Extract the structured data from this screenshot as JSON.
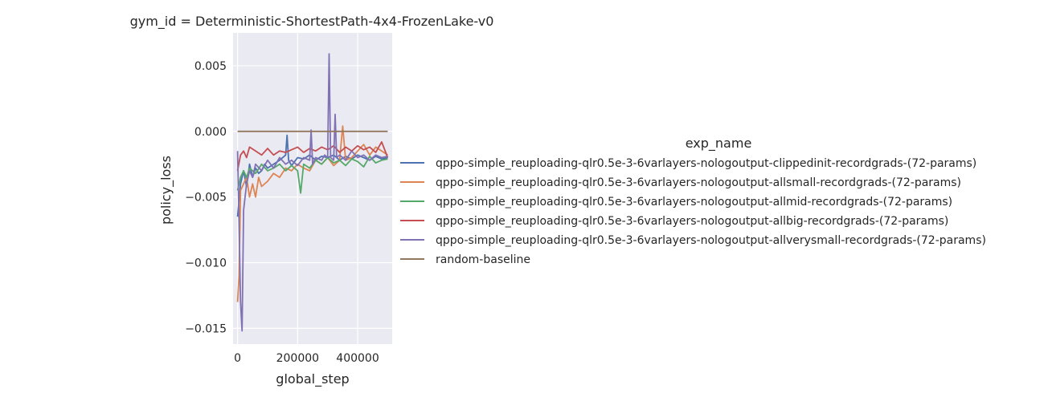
{
  "chart_data": {
    "type": "line",
    "title": "gym_id = Deterministic-ShortestPath-4x4-FrozenLake-v0",
    "xlabel": "global_step",
    "ylabel": "policy_loss",
    "xlim": [
      -15000,
      515000
    ],
    "ylim": [
      -0.0162,
      0.0075
    ],
    "xticks": [
      0,
      200000,
      400000
    ],
    "xtick_labels": [
      "0",
      "200000",
      "400000"
    ],
    "yticks": [
      -0.015,
      -0.01,
      -0.005,
      0.0,
      0.005
    ],
    "ytick_labels": [
      "−0.015",
      "−0.010",
      "−0.005",
      "0.000",
      "0.005"
    ],
    "grid": true,
    "legend_title": "exp_name",
    "legend_position": "right",
    "series": [
      {
        "name": "qppo-simple_reuploading-qlr0.5e-3-6varlayers-nologoutput-clippedinit-recordgrads-(72-params)",
        "color": "#4c72b0",
        "x": [
          0,
          10000,
          20000,
          30000,
          40000,
          50000,
          60000,
          70000,
          80000,
          90000,
          100000,
          120000,
          140000,
          160000,
          165000,
          170000,
          180000,
          200000,
          220000,
          240000,
          260000,
          280000,
          300000,
          320000,
          340000,
          360000,
          380000,
          400000,
          420000,
          440000,
          460000,
          480000,
          500000
        ],
        "y": [
          -0.0065,
          -0.004,
          -0.003,
          -0.0042,
          -0.0025,
          -0.0035,
          -0.0028,
          -0.0032,
          -0.003,
          -0.0025,
          -0.0028,
          -0.0025,
          -0.0022,
          -0.0018,
          -0.0003,
          -0.0022,
          -0.0026,
          -0.002,
          -0.0021,
          -0.0018,
          -0.0022,
          -0.0019,
          -0.002,
          -0.0018,
          -0.0022,
          -0.0019,
          -0.0021,
          -0.0018,
          -0.002,
          -0.0022,
          -0.0019,
          -0.0021,
          -0.002
        ]
      },
      {
        "name": "qppo-simple_reuploading-qlr0.5e-3-6varlayers-nologoutput-allsmall-recordgrads-(72-params)",
        "color": "#dd8452",
        "x": [
          0,
          5000,
          10000,
          20000,
          30000,
          40000,
          50000,
          60000,
          70000,
          80000,
          100000,
          120000,
          140000,
          160000,
          180000,
          200000,
          220000,
          240000,
          260000,
          280000,
          300000,
          320000,
          340000,
          350000,
          360000,
          380000,
          400000,
          420000,
          440000,
          460000,
          480000,
          500000
        ],
        "y": [
          -0.013,
          -0.011,
          -0.0045,
          -0.004,
          -0.0035,
          -0.005,
          -0.004,
          -0.005,
          -0.0035,
          -0.0042,
          -0.0038,
          -0.0032,
          -0.0035,
          -0.0028,
          -0.003,
          -0.0025,
          -0.0028,
          -0.003,
          -0.0022,
          -0.0025,
          -0.002,
          -0.0026,
          -0.0022,
          0.0004,
          -0.0022,
          -0.002,
          -0.0015,
          -0.001,
          -0.0018,
          -0.0012,
          -0.0015,
          -0.0018
        ]
      },
      {
        "name": "qppo-simple_reuploading-qlr0.5e-3-6varlayers-nologoutput-allmid-recordgrads-(72-params)",
        "color": "#55a868",
        "x": [
          0,
          10000,
          20000,
          30000,
          40000,
          60000,
          80000,
          100000,
          120000,
          140000,
          160000,
          180000,
          200000,
          210000,
          220000,
          240000,
          260000,
          280000,
          300000,
          320000,
          340000,
          360000,
          380000,
          400000,
          420000,
          440000,
          460000,
          480000,
          500000
        ],
        "y": [
          -0.0045,
          -0.0035,
          -0.003,
          -0.0035,
          -0.0028,
          -0.0032,
          -0.0025,
          -0.003,
          -0.0028,
          -0.0025,
          -0.003,
          -0.0026,
          -0.003,
          -0.0047,
          -0.0025,
          -0.0028,
          -0.0022,
          -0.0025,
          -0.002,
          -0.0024,
          -0.0022,
          -0.0026,
          -0.0021,
          -0.0023,
          -0.0027,
          -0.0019,
          -0.0024,
          -0.0022,
          -0.0021
        ]
      },
      {
        "name": "qppo-simple_reuploading-qlr0.5e-3-6varlayers-nologoutput-allbig-recordgrads-(72-params)",
        "color": "#c44e52",
        "x": [
          0,
          10000,
          20000,
          30000,
          40000,
          60000,
          80000,
          100000,
          120000,
          140000,
          160000,
          180000,
          200000,
          220000,
          240000,
          260000,
          280000,
          300000,
          320000,
          340000,
          360000,
          380000,
          400000,
          420000,
          440000,
          460000,
          480000,
          500000
        ],
        "y": [
          -0.003,
          -0.0018,
          -0.0015,
          -0.002,
          -0.0012,
          -0.0015,
          -0.0018,
          -0.0013,
          -0.0018,
          -0.0015,
          -0.0016,
          -0.0014,
          -0.0012,
          -0.0016,
          -0.0013,
          -0.0015,
          -0.0012,
          -0.0014,
          -0.0011,
          -0.0016,
          -0.0012,
          -0.0015,
          -0.0011,
          -0.0014,
          -0.0012,
          -0.0016,
          -0.0008,
          -0.002
        ]
      },
      {
        "name": "qppo-simple_reuploading-qlr0.5e-3-6varlayers-nologoutput-allverysmall-recordgrads-(72-params)",
        "color": "#8172b3",
        "x": [
          0,
          5000,
          10000,
          15000,
          20000,
          30000,
          40000,
          50000,
          60000,
          80000,
          100000,
          120000,
          140000,
          160000,
          180000,
          200000,
          220000,
          240000,
          245000,
          250000,
          260000,
          280000,
          290000,
          300000,
          305000,
          310000,
          320000,
          325000,
          330000,
          340000,
          360000,
          380000,
          400000,
          420000,
          440000,
          460000,
          480000,
          500000
        ],
        "y": [
          -0.0015,
          -0.007,
          -0.013,
          -0.0152,
          -0.006,
          -0.004,
          -0.003,
          -0.0035,
          -0.0025,
          -0.003,
          -0.0022,
          -0.0028,
          -0.002,
          -0.0025,
          -0.0022,
          -0.0026,
          -0.002,
          -0.0022,
          0.0001,
          -0.0025,
          -0.002,
          -0.0022,
          -0.0018,
          -0.002,
          0.0059,
          -0.002,
          -0.0022,
          0.0013,
          -0.002,
          -0.0018,
          -0.0022,
          -0.0015,
          -0.002,
          -0.0018,
          -0.0022,
          -0.0018,
          -0.002,
          -0.0019
        ]
      },
      {
        "name": "random-baseline",
        "color": "#937860",
        "x": [
          0,
          500000
        ],
        "y": [
          0.0,
          0.0
        ]
      }
    ]
  }
}
